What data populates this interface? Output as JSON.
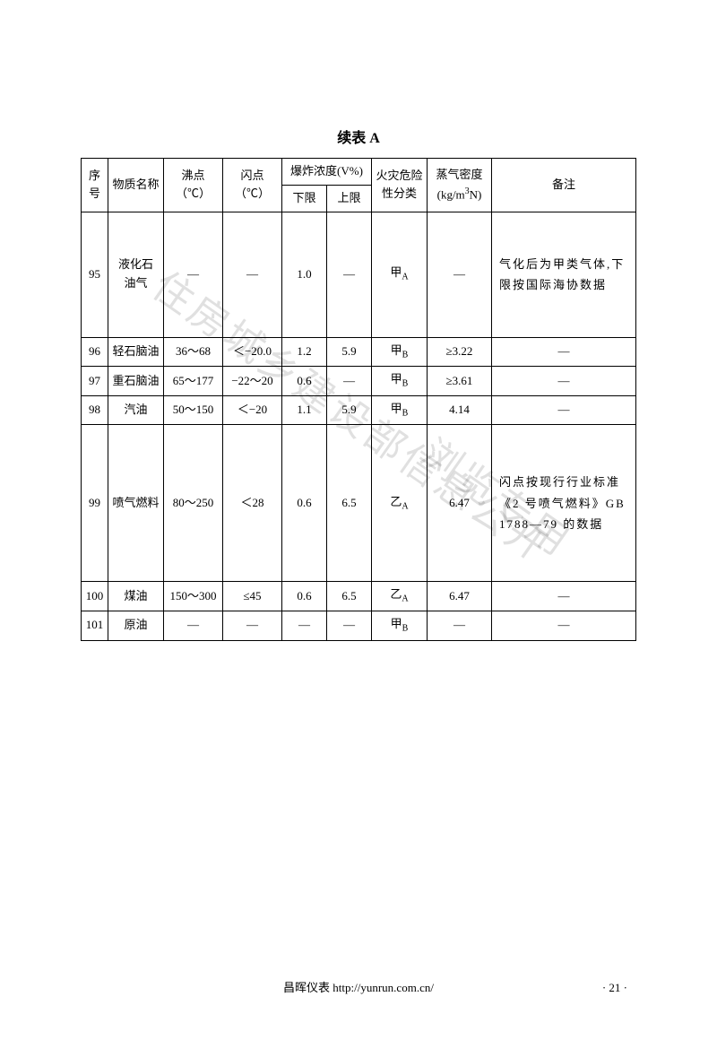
{
  "title": "续表 A",
  "headers": {
    "seq": "序号",
    "name": "物质名称",
    "bp": "沸点\n（℃）",
    "fp": "闪点\n（℃）",
    "explosion": "爆炸浓度(V%)",
    "low": "下限",
    "up": "上限",
    "fire": "火灾危险\n性分类",
    "density": "蒸气密度\n(kg/m³N)",
    "note": "备注"
  },
  "rows": [
    {
      "seq": "95",
      "name": "液化石\n油气",
      "bp": "—",
      "fp": "—",
      "low": "1.0",
      "up": "—",
      "fire": "甲",
      "fire_sub": "A",
      "den": "—",
      "note": "气化后为甲类气体,下限按国际海协数据",
      "tall": "row-tall",
      "notealign": "note-cell"
    },
    {
      "seq": "96",
      "name": "轻石脑油",
      "bp": "36～68",
      "fp": "＜−20.0",
      "low": "1.2",
      "up": "5.9",
      "fire": "甲",
      "fire_sub": "B",
      "den": "≥3.22",
      "note": "—",
      "tall": "row-short",
      "notealign": "note-cell-center"
    },
    {
      "seq": "97",
      "name": "重石脑油",
      "bp": "65～177",
      "fp": "−22～20",
      "low": "0.6",
      "up": "—",
      "fire": "甲",
      "fire_sub": "B",
      "den": "≥3.61",
      "note": "—",
      "tall": "row-short",
      "notealign": "note-cell-center"
    },
    {
      "seq": "98",
      "name": "汽油",
      "bp": "50～150",
      "fp": "＜−20",
      "low": "1.1",
      "up": "5.9",
      "fire": "甲",
      "fire_sub": "B",
      "den": "4.14",
      "note": "—",
      "tall": "row-short",
      "notealign": "note-cell-center"
    },
    {
      "seq": "99",
      "name": "喷气燃料",
      "bp": "80～250",
      "fp": "＜28",
      "low": "0.6",
      "up": "6.5",
      "fire": "乙",
      "fire_sub": "A",
      "den": "6.47",
      "note": "闪点按现行行业标准《2 号喷气燃料》GB 1788—79 的数据",
      "tall": "row-taller",
      "notealign": "note-cell"
    },
    {
      "seq": "100",
      "name": "煤油",
      "bp": "150～300",
      "fp": "≤45",
      "low": "0.6",
      "up": "6.5",
      "fire": "乙",
      "fire_sub": "A",
      "den": "6.47",
      "note": "—",
      "tall": "row-short",
      "notealign": "note-cell-center"
    },
    {
      "seq": "101",
      "name": "原油",
      "bp": "—",
      "fp": "—",
      "low": "—",
      "up": "—",
      "fire": "甲",
      "fire_sub": "B",
      "den": "—",
      "note": "—",
      "tall": "row-short",
      "notealign": "note-cell-center"
    }
  ],
  "watermarks": {
    "wm1": "住房城乡建设部信息公开",
    "wm2": "浏览专用"
  },
  "footer": {
    "center": "昌晖仪表 http://yunrun.com.cn/",
    "page": "· 21 ·"
  },
  "styling": {
    "page_bg": "#ffffff",
    "text_color": "#000000",
    "border_color": "#000000",
    "watermark_color": "rgba(0,0,0,0.12)",
    "title_fontsize": 16,
    "body_fontsize": 13,
    "font_family": "SimSun"
  }
}
